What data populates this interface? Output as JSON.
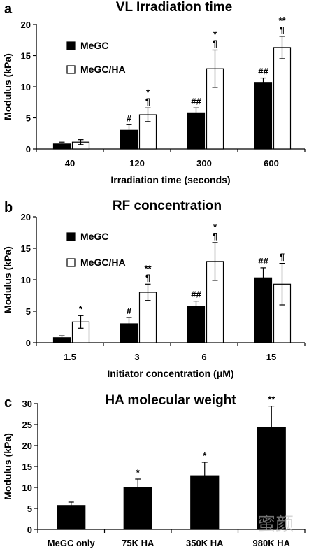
{
  "watermark": "蜜颜",
  "chart_data": [
    {
      "panel": "a",
      "type": "bar",
      "title": "VL Irradiation time",
      "xlabel": "Irradiation time (seconds)",
      "ylabel": "Modulus (kPa)",
      "ylim": [
        0,
        20
      ],
      "yticks": [
        0,
        5,
        10,
        15,
        20
      ],
      "categories": [
        "40",
        "120",
        "300",
        "600"
      ],
      "legend": "upper-left",
      "series": [
        {
          "name": "MeGC",
          "color": "#000000",
          "values": [
            0.8,
            3.0,
            5.8,
            10.7
          ],
          "errors": [
            0.3,
            0.9,
            0.8,
            0.7
          ],
          "annotations": [
            [],
            [
              "#"
            ],
            [
              "##"
            ],
            [
              "##"
            ]
          ]
        },
        {
          "name": "MeGC/HA",
          "color": "#ffffff",
          "values": [
            1.1,
            5.5,
            12.9,
            16.3
          ],
          "errors": [
            0.4,
            1.1,
            3.0,
            1.8
          ],
          "annotations": [
            [],
            [
              "*",
              "¶"
            ],
            [
              "*",
              "¶"
            ],
            [
              "**",
              "¶"
            ]
          ]
        }
      ]
    },
    {
      "panel": "b",
      "type": "bar",
      "title": "RF concentration",
      "xlabel": "Initiator concentration (μM)",
      "ylabel": "Modulus (kPa)",
      "ylim": [
        0,
        20
      ],
      "yticks": [
        0,
        5,
        10,
        15,
        20
      ],
      "categories": [
        "1.5",
        "3",
        "6",
        "15"
      ],
      "legend": "upper-left",
      "series": [
        {
          "name": "MeGC",
          "color": "#000000",
          "values": [
            0.8,
            3.0,
            5.8,
            10.3
          ],
          "errors": [
            0.3,
            1.0,
            0.8,
            1.6
          ],
          "annotations": [
            [],
            [
              "#"
            ],
            [
              "##"
            ],
            [
              "##"
            ]
          ]
        },
        {
          "name": "MeGC/HA",
          "color": "#ffffff",
          "values": [
            3.3,
            8.0,
            12.9,
            9.3
          ],
          "errors": [
            1.0,
            1.3,
            3.0,
            3.3
          ],
          "annotations": [
            [
              "*"
            ],
            [
              "**",
              "¶"
            ],
            [
              "*",
              "¶"
            ],
            [
              "¶"
            ]
          ]
        }
      ]
    },
    {
      "panel": "c",
      "type": "bar",
      "title": "HA molecular weight",
      "xlabel": "",
      "ylabel": "Modulus (kPa)",
      "ylim": [
        0,
        30
      ],
      "yticks": [
        0,
        5,
        10,
        15,
        20,
        25,
        30
      ],
      "categories": [
        "MeGC only",
        "75K HA",
        "350K HA",
        "980K HA"
      ],
      "series": [
        {
          "name": "",
          "color": "#000000",
          "values": [
            5.7,
            10.0,
            12.8,
            24.4
          ],
          "errors": [
            0.8,
            2.0,
            3.2,
            5.0
          ],
          "annotations": [
            [],
            [
              "*"
            ],
            [
              "*"
            ],
            [
              "**"
            ]
          ]
        }
      ]
    }
  ]
}
